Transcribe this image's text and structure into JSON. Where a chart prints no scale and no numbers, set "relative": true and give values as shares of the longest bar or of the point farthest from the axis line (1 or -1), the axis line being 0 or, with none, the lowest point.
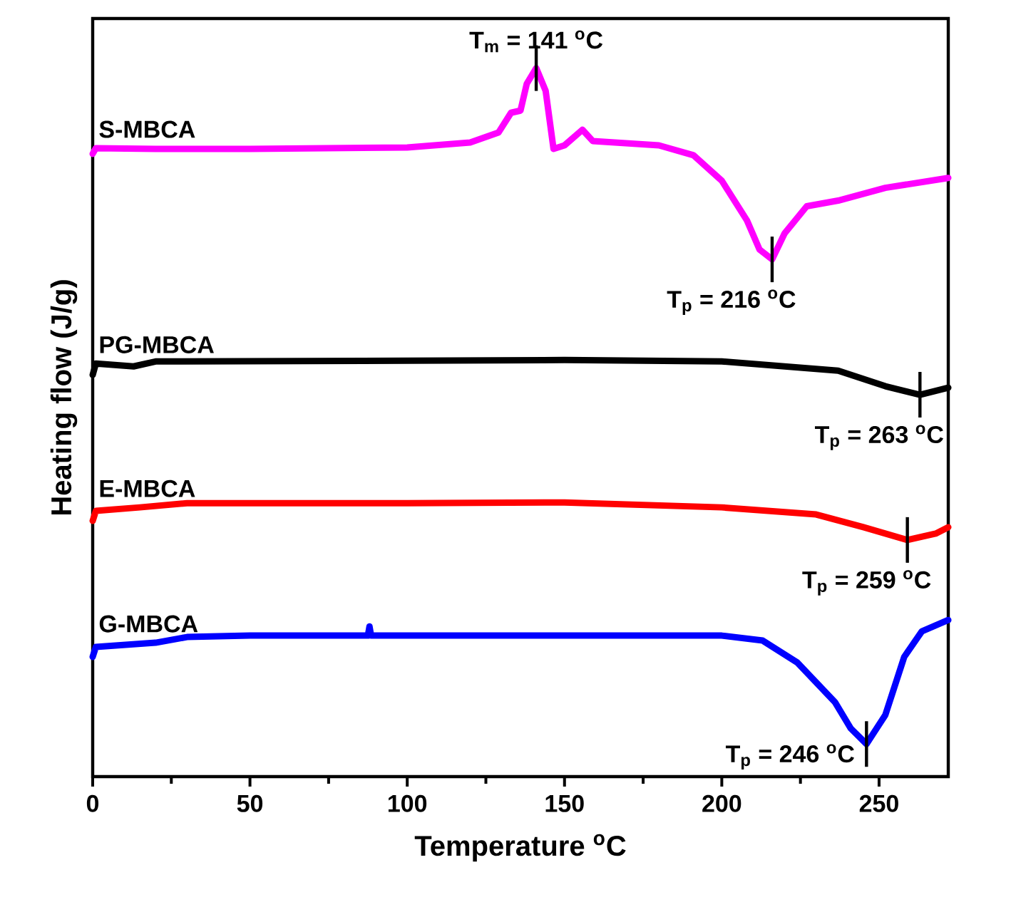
{
  "chart_data": {
    "type": "line",
    "relative": true,
    "xlabel": "Temperature $^{o}$C",
    "ylabel": "Heating flow (J/g)",
    "xlim": [
      0,
      272
    ],
    "xticks": [
      0,
      50,
      100,
      150,
      200,
      250
    ],
    "grid": false,
    "legend": false,
    "marker": "none",
    "line_style": "solid",
    "series": [
      {
        "name": "S-MBCA",
        "color": "#ff00ff",
        "x": [
          0,
          1,
          20,
          50,
          100,
          120,
          129,
          133,
          136,
          138,
          141,
          144,
          146.5,
          150,
          155.7,
          159,
          180,
          191,
          200,
          208,
          212,
          216,
          220,
          227,
          237,
          252,
          272
        ],
        "values": [
          0.879,
          0.887,
          0.886,
          0.886,
          0.888,
          0.895,
          0.909,
          0.937,
          0.94,
          0.978,
          1.0,
          0.968,
          0.886,
          0.891,
          0.913,
          0.897,
          0.891,
          0.877,
          0.841,
          0.785,
          0.744,
          0.73,
          0.767,
          0.805,
          0.813,
          0.831,
          0.845
        ]
      },
      {
        "name": "PG-MBCA",
        "color": "#000000",
        "x": [
          0,
          1,
          13,
          20,
          100,
          150,
          200,
          237,
          252,
          263,
          272
        ],
        "values": [
          0.567,
          0.583,
          0.579,
          0.586,
          0.587,
          0.588,
          0.586,
          0.573,
          0.551,
          0.539,
          0.549
        ]
      },
      {
        "name": "E-MBCA",
        "color": "#ff0000",
        "x": [
          0,
          1,
          15,
          30,
          100,
          150,
          200,
          230,
          245,
          259,
          268,
          272
        ],
        "values": [
          0.361,
          0.375,
          0.38,
          0.386,
          0.386,
          0.387,
          0.38,
          0.37,
          0.352,
          0.334,
          0.343,
          0.352
        ]
      },
      {
        "name": "G-MBCA",
        "color": "#0000ff",
        "x": [
          0,
          1,
          20,
          30,
          50,
          87.5,
          88,
          88.5,
          200,
          213,
          224,
          236,
          241,
          246,
          252,
          258,
          263.6,
          272
        ],
        "values": [
          0.169,
          0.183,
          0.189,
          0.197,
          0.199,
          0.199,
          0.212,
          0.199,
          0.199,
          0.192,
          0.161,
          0.105,
          0.068,
          0.046,
          0.087,
          0.169,
          0.205,
          0.221
        ]
      }
    ],
    "annotations": [
      {
        "text": "T$_{m}$ = 141 $^{o}$C",
        "x": 141,
        "y": 1.0
      },
      {
        "text": "T$_{p}$ = 216 $^{o}$C",
        "x": 216,
        "y": 0.73
      },
      {
        "text": "T$_{p}$ = 263 $^{o}$C",
        "x": 263,
        "y": 0.539
      },
      {
        "text": "T$_{p}$ = 259 $^{o}$C",
        "x": 259,
        "y": 0.334
      },
      {
        "text": "T$_{p}$ = 246 $^{o}$C",
        "x": 246,
        "y": 0.046
      }
    ]
  }
}
